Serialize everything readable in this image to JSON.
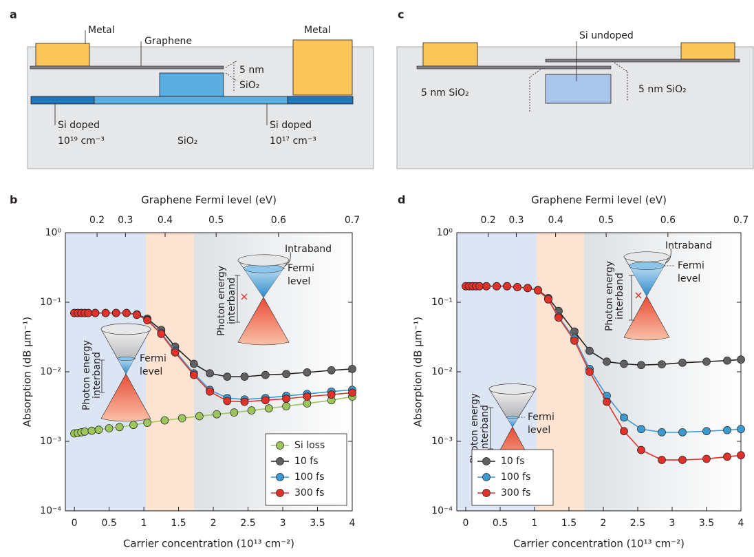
{
  "diagram_a": {
    "label": "a",
    "metal_left": "Metal",
    "graphene": "Graphene",
    "metal_right": "Metal",
    "oxide_thickness": "5 nm",
    "oxide": "SiO₂",
    "doped_left": "Si doped",
    "doping_left": "10¹⁹ cm⁻³",
    "cladding": "SiO₂",
    "doped_right": "Si doped",
    "doping_right": "10¹⁷ cm⁻³"
  },
  "diagram_c": {
    "label": "c",
    "waveguide": "Si undoped",
    "oxide_left": "5 nm SiO₂",
    "oxide_right": "5 nm SiO₂"
  },
  "chart_data": [
    {
      "type": "line",
      "label": "b",
      "x2label": "Graphene Fermi level (eV)",
      "xlabel": "Carrier concentration (10¹³ cm⁻²)",
      "ylabel": "Absorption (dB µm⁻¹)",
      "log_y": true,
      "xlim": [
        -0.13,
        4
      ],
      "xticks": [
        0,
        0.5,
        1,
        1.5,
        2,
        2.5,
        3,
        3.5,
        4
      ],
      "x2scale": "square",
      "x2lim": [
        0,
        0.7
      ],
      "x2ticks": [
        0.2,
        0.3,
        0.4,
        0.5,
        0.6,
        0.7
      ],
      "ylim": [
        0.0001,
        1
      ],
      "yticks": [
        {
          "value": 0.0001,
          "label": "10⁻⁴"
        },
        {
          "value": 0.001,
          "label": "10⁻³"
        },
        {
          "value": 0.01,
          "label": "10⁻²"
        },
        {
          "value": 0.1,
          "label": "10⁻¹"
        },
        {
          "value": 1,
          "label": "10⁰"
        }
      ],
      "regions": [
        {
          "x": [
            -0.13,
            1.03
          ],
          "color": [
            "#dbe5f4",
            "#dbe5f4"
          ]
        },
        {
          "x": [
            1.03,
            1.72
          ],
          "color": [
            "#fde4d2",
            "#fde4d2"
          ]
        },
        {
          "x": [
            1.72,
            4
          ],
          "color": [
            "#dde1e4",
            "#ffffff"
          ]
        }
      ],
      "legend": "lower right",
      "series": [
        {
          "name": "Si loss",
          "color": "#9cc55b",
          "x": [
            0,
            0.05,
            0.1,
            0.15,
            0.25,
            0.35,
            0.5,
            0.65,
            0.85,
            1.05,
            1.3,
            1.55,
            1.8,
            2.05,
            2.3,
            2.55,
            2.8,
            3.05,
            3.35,
            3.7,
            4
          ],
          "values": [
            0.0013,
            0.00132,
            0.00135,
            0.00138,
            0.00142,
            0.00147,
            0.00154,
            0.0016,
            0.00172,
            0.00185,
            0.002,
            0.00215,
            0.0023,
            0.00245,
            0.0026,
            0.00278,
            0.00298,
            0.0032,
            0.0035,
            0.0039,
            0.0044
          ]
        },
        {
          "name": "10 fs",
          "color": "#5f6062",
          "x": [
            0,
            0.05,
            0.1,
            0.15,
            0.2,
            0.3,
            0.45,
            0.6,
            0.75,
            0.9,
            1.05,
            1.25,
            1.45,
            1.72,
            1.95,
            2.2,
            2.45,
            2.75,
            3.05,
            3.35,
            3.7,
            4
          ],
          "values": [
            0.07,
            0.07,
            0.07,
            0.07,
            0.07,
            0.07,
            0.07,
            0.07,
            0.07,
            0.067,
            0.058,
            0.04,
            0.023,
            0.013,
            0.0095,
            0.0085,
            0.0085,
            0.009,
            0.0093,
            0.0098,
            0.0105,
            0.011
          ]
        },
        {
          "name": "100 fs",
          "color": "#3d9ad1",
          "x": [
            0,
            0.05,
            0.1,
            0.15,
            0.2,
            0.3,
            0.45,
            0.6,
            0.75,
            0.9,
            1.05,
            1.25,
            1.45,
            1.72,
            1.95,
            2.2,
            2.45,
            2.75,
            3.05,
            3.35,
            3.7,
            4
          ],
          "values": [
            0.07,
            0.07,
            0.07,
            0.07,
            0.07,
            0.07,
            0.07,
            0.07,
            0.07,
            0.066,
            0.056,
            0.036,
            0.02,
            0.0095,
            0.0055,
            0.0042,
            0.004,
            0.0042,
            0.0045,
            0.0048,
            0.0052,
            0.0055
          ]
        },
        {
          "name": "300 fs",
          "color": "#e0312a",
          "x": [
            0,
            0.05,
            0.1,
            0.15,
            0.2,
            0.3,
            0.45,
            0.6,
            0.75,
            0.9,
            1.05,
            1.25,
            1.45,
            1.72,
            1.95,
            2.2,
            2.45,
            2.75,
            3.05,
            3.35,
            3.7,
            4
          ],
          "values": [
            0.07,
            0.07,
            0.07,
            0.07,
            0.07,
            0.07,
            0.07,
            0.07,
            0.07,
            0.066,
            0.055,
            0.035,
            0.019,
            0.009,
            0.0052,
            0.0038,
            0.0037,
            0.0039,
            0.0041,
            0.0044,
            0.0047,
            0.005
          ]
        }
      ],
      "insets": [
        {
          "photon": "Photon energy",
          "interband": "interband",
          "fermi": "Fermi",
          "level": "level"
        },
        {
          "intraband": "Intraband",
          "photon": "Photon energy",
          "interband": "interband",
          "fermi": "Fermi",
          "level": "level"
        }
      ]
    },
    {
      "type": "line",
      "label": "d",
      "x2label": "Graphene Fermi level (eV)",
      "xlabel": "Carrier concentration (10¹³ cm⁻²)",
      "ylabel": "Absorption (dB µm⁻¹)",
      "log_y": true,
      "xlim": [
        -0.13,
        4
      ],
      "xticks": [
        0,
        0.5,
        1,
        1.5,
        2,
        2.5,
        3,
        3.5,
        4
      ],
      "x2scale": "square",
      "x2lim": [
        0,
        0.7
      ],
      "x2ticks": [
        0.2,
        0.3,
        0.4,
        0.5,
        0.6,
        0.7
      ],
      "ylim": [
        0.0001,
        1
      ],
      "yticks": [
        {
          "value": 0.0001,
          "label": "10⁻⁴"
        },
        {
          "value": 0.001,
          "label": "10⁻³"
        },
        {
          "value": 0.01,
          "label": "10⁻²"
        },
        {
          "value": 0.1,
          "label": "10⁻¹"
        },
        {
          "value": 1,
          "label": "10⁰"
        }
      ],
      "regions": [
        {
          "x": [
            -0.13,
            1.03
          ],
          "color": [
            "#dbe5f4",
            "#dbe5f4"
          ]
        },
        {
          "x": [
            1.03,
            1.72
          ],
          "color": [
            "#fde4d2",
            "#fde4d2"
          ]
        },
        {
          "x": [
            1.72,
            4
          ],
          "color": [
            "#dde1e4",
            "#ffffff"
          ]
        }
      ],
      "legend": "lower left",
      "series": [
        {
          "name": "10 fs",
          "color": "#5f6062",
          "x": [
            0,
            0.05,
            0.1,
            0.15,
            0.2,
            0.3,
            0.45,
            0.6,
            0.75,
            0.9,
            1.05,
            1.2,
            1.35,
            1.58,
            1.8,
            2.05,
            2.3,
            2.55,
            2.85,
            3.15,
            3.5,
            3.8,
            4
          ],
          "values": [
            0.17,
            0.17,
            0.17,
            0.17,
            0.17,
            0.17,
            0.17,
            0.17,
            0.165,
            0.16,
            0.15,
            0.115,
            0.075,
            0.038,
            0.02,
            0.014,
            0.013,
            0.0125,
            0.0128,
            0.0135,
            0.014,
            0.0145,
            0.015
          ]
        },
        {
          "name": "100 fs",
          "color": "#3d9ad1",
          "x": [
            0,
            0.05,
            0.1,
            0.15,
            0.2,
            0.3,
            0.45,
            0.6,
            0.75,
            0.9,
            1.05,
            1.2,
            1.35,
            1.58,
            1.8,
            2.05,
            2.3,
            2.55,
            2.85,
            3.15,
            3.5,
            3.8,
            4
          ],
          "values": [
            0.17,
            0.17,
            0.17,
            0.17,
            0.17,
            0.17,
            0.17,
            0.17,
            0.165,
            0.16,
            0.148,
            0.11,
            0.062,
            0.03,
            0.011,
            0.0045,
            0.0022,
            0.0015,
            0.00135,
            0.00135,
            0.0014,
            0.00145,
            0.0015
          ]
        },
        {
          "name": "300 fs",
          "color": "#e0312a",
          "x": [
            0,
            0.05,
            0.1,
            0.15,
            0.2,
            0.3,
            0.45,
            0.6,
            0.75,
            0.9,
            1.05,
            1.2,
            1.35,
            1.58,
            1.8,
            2.05,
            2.3,
            2.55,
            2.85,
            3.15,
            3.5,
            3.8,
            4
          ],
          "values": [
            0.17,
            0.17,
            0.17,
            0.17,
            0.17,
            0.17,
            0.17,
            0.17,
            0.165,
            0.16,
            0.148,
            0.11,
            0.06,
            0.028,
            0.01,
            0.0037,
            0.0014,
            0.00075,
            0.00054,
            0.00054,
            0.00056,
            0.0006,
            0.00063
          ]
        }
      ],
      "insets": [
        {
          "photon": "Photon energy",
          "interband": "interband",
          "fermi": "Fermi",
          "level": "level"
        },
        {
          "intraband": "Intraband",
          "photon": "Photon energy",
          "interband": "interband",
          "fermi": "Fermi",
          "level": "level"
        }
      ]
    }
  ]
}
